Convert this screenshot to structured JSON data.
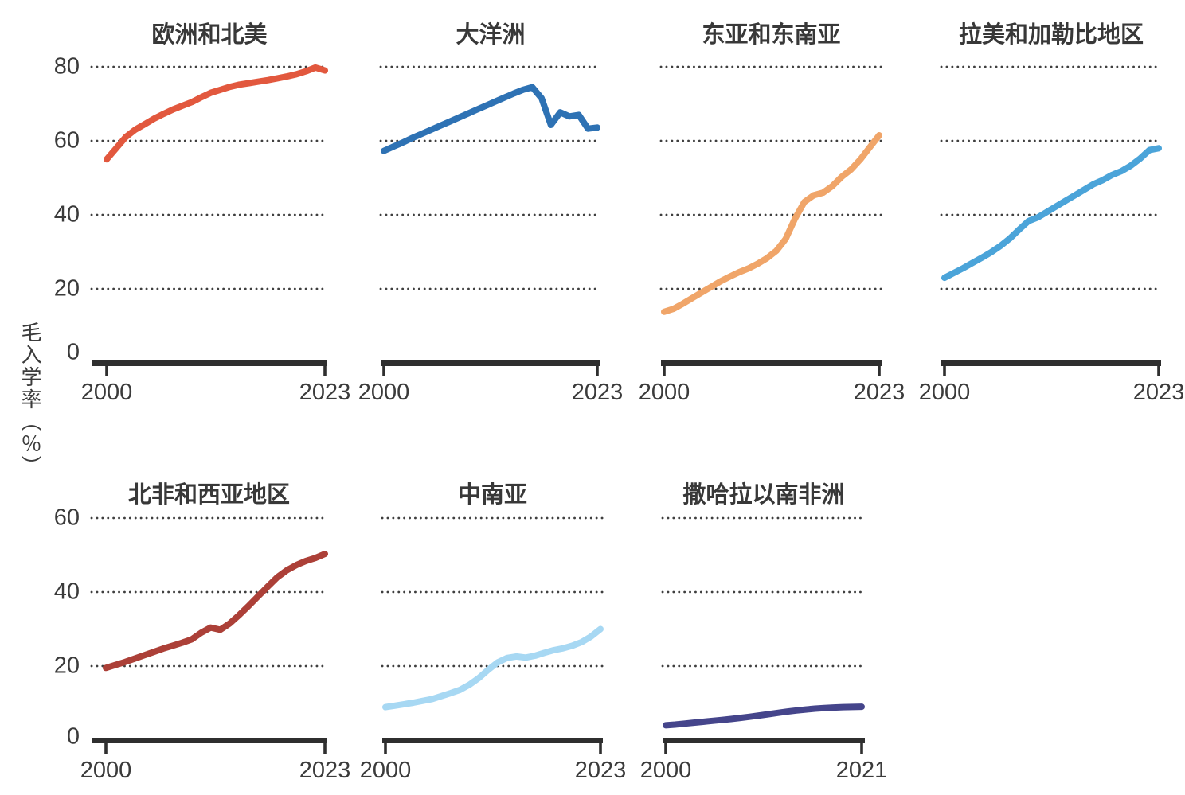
{
  "page": {
    "background": "#ffffff",
    "y_axis_title": "毛入学率（％）"
  },
  "style": {
    "axis_color": "#2f2f2f",
    "grid_dot_color": "#3f3f3f",
    "tick_label_color": "#3b3b3b",
    "title_color": "#383838"
  },
  "chart_data": [
    {
      "type": "line",
      "title": "欧洲和北美",
      "line_color": "#e2583e",
      "x_start": 2000,
      "x_end": 2023,
      "x_interval_years": 1,
      "x_tick_labels": [
        "2000",
        "2023"
      ],
      "y_tick_labels": [
        "0",
        "20",
        "40",
        "60",
        "80"
      ],
      "gridline_values": [
        20,
        40,
        60,
        80
      ],
      "ylim": [
        0,
        85
      ],
      "values": [
        55,
        58,
        61,
        63,
        64.5,
        66,
        67.3,
        68.5,
        69.5,
        70.5,
        71.8,
        73,
        73.8,
        74.6,
        75.2,
        75.6,
        76,
        76.4,
        76.9,
        77.4,
        78,
        78.8,
        79.8,
        79
      ]
    },
    {
      "type": "line",
      "title": "大洋洲",
      "line_color": "#2e72b4",
      "x_start": 2000,
      "x_end": 2023,
      "x_interval_years": 1,
      "x_tick_labels": [
        "2000",
        "2023"
      ],
      "y_tick_labels": [],
      "gridline_values": [
        20,
        40,
        60,
        80
      ],
      "ylim": [
        0,
        85
      ],
      "values": [
        57.3,
        58.4,
        59.5,
        60.7,
        61.8,
        62.9,
        64,
        65.1,
        66.2,
        67.3,
        68.4,
        69.5,
        70.6,
        71.7,
        72.8,
        73.8,
        74.5,
        71.5,
        64.3,
        67.7,
        66.6,
        67,
        63.3,
        63.6
      ]
    },
    {
      "type": "line",
      "title": "东亚和东南亚",
      "line_color": "#f0a569",
      "x_start": 2000,
      "x_end": 2023,
      "x_interval_years": 1,
      "x_tick_labels": [
        "2000",
        "2023"
      ],
      "y_tick_labels": [],
      "gridline_values": [
        20,
        40,
        60,
        80
      ],
      "ylim": [
        0,
        85
      ],
      "values": [
        13.8,
        14.6,
        16,
        17.5,
        19,
        20.5,
        22,
        23.3,
        24.5,
        25.5,
        26.8,
        28.3,
        30.3,
        33.5,
        39,
        43.5,
        45.3,
        46,
        47.8,
        50.3,
        52.3,
        55,
        58.3,
        61.5
      ]
    },
    {
      "type": "line",
      "title": "拉美和加勒比地区",
      "line_color": "#4ba4d9",
      "x_start": 2000,
      "x_end": 2023,
      "x_interval_years": 1,
      "x_tick_labels": [
        "2000",
        "2023"
      ],
      "y_tick_labels": [],
      "gridline_values": [
        20,
        40,
        60,
        80
      ],
      "ylim": [
        0,
        85
      ],
      "values": [
        23,
        24.3,
        25.6,
        27,
        28.4,
        29.9,
        31.6,
        33.6,
        36,
        38.3,
        39.3,
        40.8,
        42.3,
        43.8,
        45.3,
        46.8,
        48.3,
        49.4,
        50.8,
        51.8,
        53.3,
        55.2,
        57.5,
        58
      ]
    },
    {
      "type": "line",
      "title": "北非和西亚地区",
      "line_color": "#ac4038",
      "x_start": 2000,
      "x_end": 2023,
      "x_interval_years": 1,
      "x_tick_labels": [
        "2000",
        "2023"
      ],
      "y_tick_labels": [
        "0",
        "20",
        "40",
        "60"
      ],
      "gridline_values": [
        20,
        40,
        60
      ],
      "ylim": [
        0,
        64
      ],
      "values": [
        19.5,
        20.3,
        21.1,
        22,
        22.9,
        23.8,
        24.7,
        25.5,
        26.3,
        27.2,
        29,
        30.4,
        29.8,
        31.5,
        33.8,
        36.3,
        38.9,
        41.5,
        44,
        45.9,
        47.3,
        48.4,
        49.2,
        50.3
      ]
    },
    {
      "type": "line",
      "title": "中南亚",
      "line_color": "#a7d8f3",
      "x_start": 2000,
      "x_end": 2023,
      "x_interval_years": 1,
      "x_tick_labels": [
        "2000",
        "2023"
      ],
      "y_tick_labels": [],
      "gridline_values": [
        20,
        40,
        60
      ],
      "ylim": [
        0,
        64
      ],
      "values": [
        8.9,
        9.3,
        9.7,
        10.1,
        10.6,
        11.1,
        11.9,
        12.7,
        13.6,
        15,
        16.8,
        19,
        21,
        22.2,
        22.6,
        22.3,
        22.8,
        23.6,
        24.3,
        24.8,
        25.5,
        26.5,
        28,
        30
      ]
    },
    {
      "type": "line",
      "title": "撒哈拉以南非洲",
      "line_color": "#45458b",
      "x_start": 2000,
      "x_end": 2021,
      "x_interval_years": 1,
      "x_tick_labels": [
        "2000",
        "2021"
      ],
      "y_tick_labels": [],
      "gridline_values": [
        20,
        40,
        60
      ],
      "ylim": [
        0,
        64
      ],
      "values": [
        4,
        4.2,
        4.45,
        4.7,
        4.95,
        5.2,
        5.45,
        5.7,
        6,
        6.3,
        6.65,
        7,
        7.35,
        7.7,
        8,
        8.25,
        8.5,
        8.65,
        8.8,
        8.9,
        8.95,
        9
      ]
    }
  ]
}
